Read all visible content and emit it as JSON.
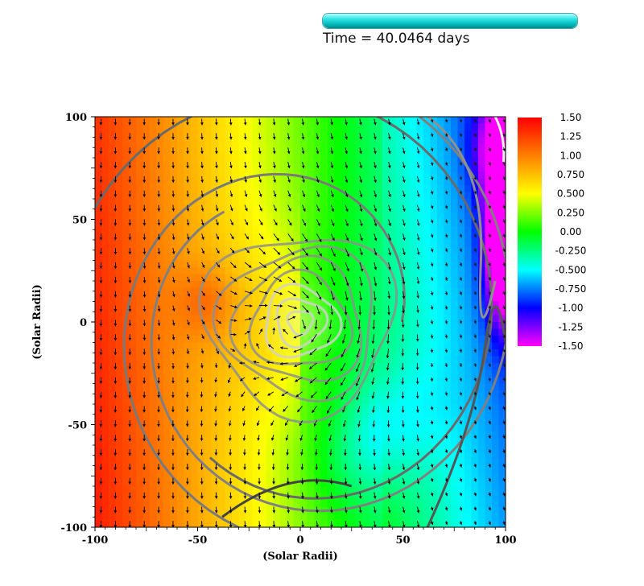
{
  "header": {
    "progress_fraction": 1.0,
    "time_text": "Time = 40.0464 days"
  },
  "chart_data": {
    "type": "heatmap",
    "title": "",
    "xlabel": "(Solar Radii)",
    "ylabel": "(Solar Radii)",
    "xlim": [
      -100,
      100
    ],
    "ylim": [
      -100,
      100
    ],
    "x_ticks": [
      {
        "value": -100,
        "label": "-100"
      },
      {
        "value": -50,
        "label": "-50"
      },
      {
        "value": 0,
        "label": "0"
      },
      {
        "value": 50,
        "label": "50"
      },
      {
        "value": 100,
        "label": "100"
      }
    ],
    "y_ticks": [
      {
        "value": 100,
        "label": "100"
      },
      {
        "value": 50,
        "label": "50"
      },
      {
        "value": 0,
        "label": "0"
      },
      {
        "value": -50,
        "label": "-50"
      },
      {
        "value": -100,
        "label": "-100"
      }
    ],
    "colorbar": {
      "min": -1.5,
      "max": 1.5,
      "labels": [
        "1.50",
        "1.25",
        "1.00",
        "0.750",
        "0.500",
        "0.250",
        "0.00",
        "-0.250",
        "-0.500",
        "-0.750",
        "-1.00",
        "-1.25",
        "-1.50"
      ],
      "colors": [
        "#ff0000",
        "#ff8000",
        "#ffff00",
        "#00ff00",
        "#00ffff",
        "#0000ff",
        "#ff00ff"
      ]
    },
    "overlays": {
      "vector_field": true,
      "contours": true,
      "vortex_center": [
        0,
        0
      ]
    }
  }
}
